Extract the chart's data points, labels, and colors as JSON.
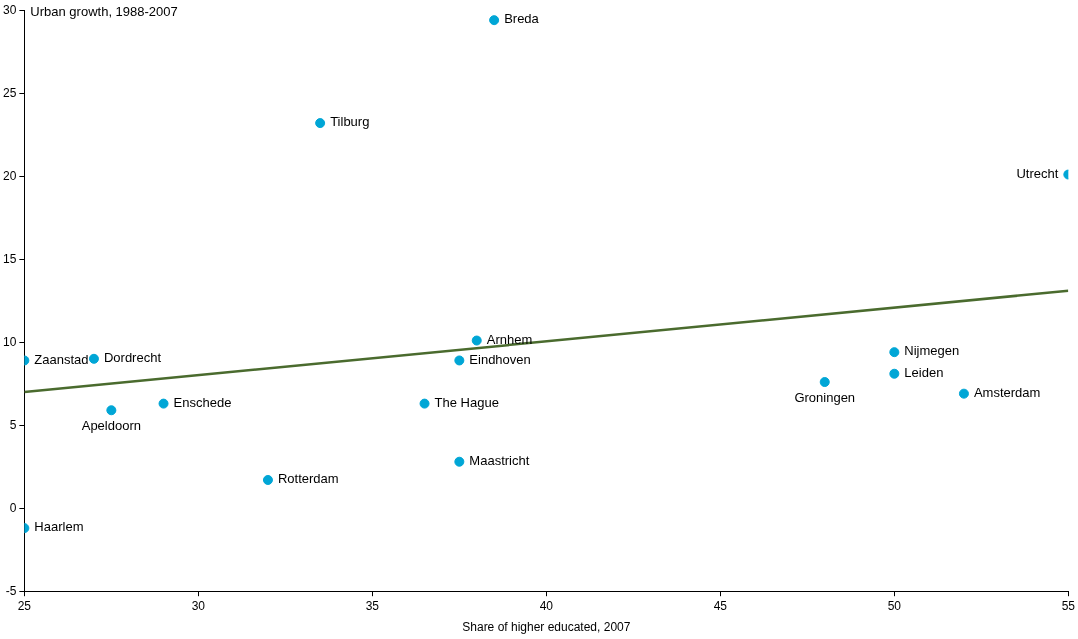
{
  "chart_data": {
    "type": "scatter",
    "xlabel": "Share of higher educated, 2007",
    "ylabel": "Urban growth, 1988-2007",
    "xlim": [
      25,
      55
    ],
    "ylim": [
      -5,
      30
    ],
    "xticks": [
      25,
      30,
      35,
      40,
      45,
      50,
      55
    ],
    "yticks": [
      -5,
      0,
      5,
      10,
      15,
      20,
      25,
      30
    ],
    "grid": false,
    "legend": false,
    "marker": "circle",
    "series": [
      {
        "color": "#00a6d6",
        "x": [
          38.5,
          33.5,
          55,
          25,
          27,
          38,
          37.5,
          50,
          50,
          48,
          52,
          29,
          27.5,
          36.5,
          37.5,
          32,
          25
        ],
        "values": [
          29.4,
          23.2,
          20.1,
          8.9,
          9,
          10.1,
          8.9,
          9.4,
          8.1,
          7.6,
          6.9,
          6.3,
          5.9,
          6.3,
          2.8,
          1.7,
          -1.2
        ]
      },
      {
        "type": "line",
        "marker": "none",
        "color": "#4a6b2e",
        "x": [
          25,
          55
        ],
        "values": [
          7,
          13.1
        ]
      }
    ],
    "annotations": [
      {
        "text": "Breda",
        "x": 38.5,
        "y": 29.4
      },
      {
        "text": "Tilburg",
        "x": 33.5,
        "y": 23.2
      },
      {
        "text": "Utrecht",
        "x": 55,
        "y": 20.1
      },
      {
        "text": "Zaanstad",
        "x": 25,
        "y": 8.9
      },
      {
        "text": "Dordrecht",
        "x": 27,
        "y": 9
      },
      {
        "text": "Arnhem",
        "x": 38,
        "y": 10.1
      },
      {
        "text": "Eindhoven",
        "x": 37.5,
        "y": 8.9
      },
      {
        "text": "Nijmegen",
        "x": 50,
        "y": 9.4
      },
      {
        "text": "Leiden",
        "x": 50,
        "y": 8.1
      },
      {
        "text": "Groningen",
        "x": 48,
        "y": 7.6
      },
      {
        "text": "Amsterdam",
        "x": 52,
        "y": 6.9
      },
      {
        "text": "Enschede",
        "x": 29,
        "y": 6.3
      },
      {
        "text": "Apeldoorn",
        "x": 27.5,
        "y": 5.9
      },
      {
        "text": "The Hague",
        "x": 36.5,
        "y": 6.3
      },
      {
        "text": "Maastricht",
        "x": 37.5,
        "y": 2.8
      },
      {
        "text": "Rotterdam",
        "x": 32,
        "y": 1.7
      },
      {
        "text": "Haarlem",
        "x": 25,
        "y": -1.2
      }
    ]
  }
}
